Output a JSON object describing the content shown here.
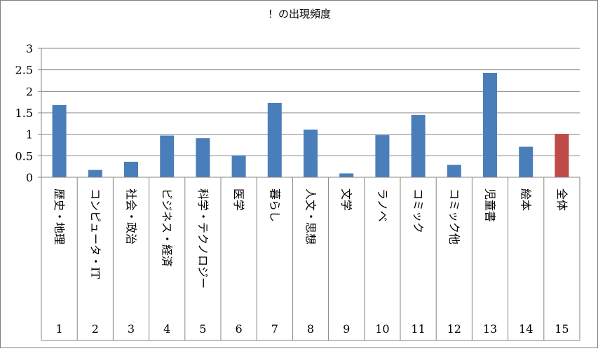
{
  "chart_data": {
    "type": "bar",
    "title": "！の出現頻度",
    "xlabel": "",
    "ylabel": "",
    "ylim": [
      0,
      3
    ],
    "yticks": [
      "0",
      "0.5",
      "1",
      "1.5",
      "2",
      "2.5",
      "3"
    ],
    "grid": true,
    "legend": "none",
    "categories": [
      {
        "num": "1",
        "label": "歴史・地理"
      },
      {
        "num": "2",
        "label": "コンピュータ・IT"
      },
      {
        "num": "3",
        "label": "社会・政治"
      },
      {
        "num": "4",
        "label": "ビジネス・経済"
      },
      {
        "num": "5",
        "label": "科学・テクノロジー"
      },
      {
        "num": "6",
        "label": "医学"
      },
      {
        "num": "7",
        "label": "暮らし"
      },
      {
        "num": "8",
        "label": "人文・思想"
      },
      {
        "num": "9",
        "label": "文学"
      },
      {
        "num": "10",
        "label": "ラノベ"
      },
      {
        "num": "11",
        "label": "コミック"
      },
      {
        "num": "12",
        "label": "コミック他"
      },
      {
        "num": "13",
        "label": "児童書"
      },
      {
        "num": "14",
        "label": "絵本"
      },
      {
        "num": "15",
        "label": "全体"
      }
    ],
    "values": [
      1.68,
      0.17,
      0.36,
      0.97,
      0.91,
      0.51,
      1.73,
      1.11,
      0.09,
      0.98,
      1.45,
      0.29,
      2.43,
      0.71,
      1.01
    ],
    "colors": {
      "bar": "#4a7ebb",
      "highlight": "#be4b48",
      "grid": "#868686",
      "axis": "#868686"
    },
    "highlight_index": 14
  }
}
